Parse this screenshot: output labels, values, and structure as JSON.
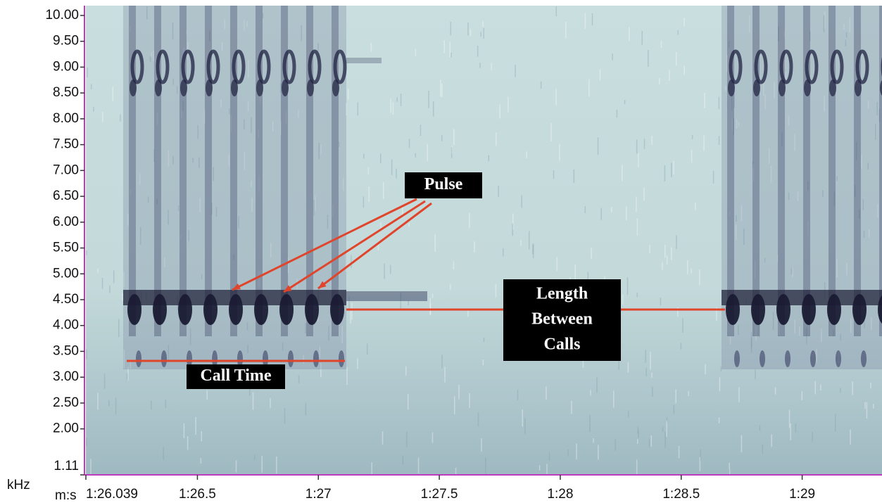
{
  "chart_data": {
    "type": "spectrogram",
    "y_unit": "kHz",
    "x_unit": "m:s",
    "ylim": [
      1.11,
      10.19
    ],
    "yticks": [
      {
        "value": 1.11,
        "label": "1.11"
      },
      {
        "value": 2,
        "label": "2.00"
      },
      {
        "value": 2.5,
        "label": "2.50"
      },
      {
        "value": 3,
        "label": "3.00"
      },
      {
        "value": 3.5,
        "label": "3.50"
      },
      {
        "value": 4,
        "label": "4.00"
      },
      {
        "value": 4.5,
        "label": "4.50"
      },
      {
        "value": 5,
        "label": "5.00"
      },
      {
        "value": 5.5,
        "label": "5.50"
      },
      {
        "value": 6,
        "label": "6.00"
      },
      {
        "value": 6.5,
        "label": "6.50"
      },
      {
        "value": 7,
        "label": "7.00"
      },
      {
        "value": 7.5,
        "label": "7.50"
      },
      {
        "value": 8,
        "label": "8.00"
      },
      {
        "value": 8.5,
        "label": "8.50"
      },
      {
        "value": 9,
        "label": "9.00"
      },
      {
        "value": 9.5,
        "label": "9.50"
      },
      {
        "value": 10,
        "label": "10.00"
      }
    ],
    "xlim": [
      86.039,
      89.33
    ],
    "xticks": [
      {
        "value": 86.039,
        "label": "1:26.039"
      },
      {
        "value": 86.5,
        "label": "1:26.5"
      },
      {
        "value": 87,
        "label": "1:27"
      },
      {
        "value": 87.5,
        "label": "1:27.5"
      },
      {
        "value": 88,
        "label": "1:28"
      },
      {
        "value": 88.5,
        "label": "1:28.5"
      },
      {
        "value": 89,
        "label": "1:29"
      }
    ],
    "annotations": [
      {
        "lines": [
          "Pulse"
        ]
      },
      {
        "lines": [
          "Length",
          "Between",
          "Calls"
        ]
      },
      {
        "lines": [
          "Call Time"
        ]
      }
    ]
  }
}
